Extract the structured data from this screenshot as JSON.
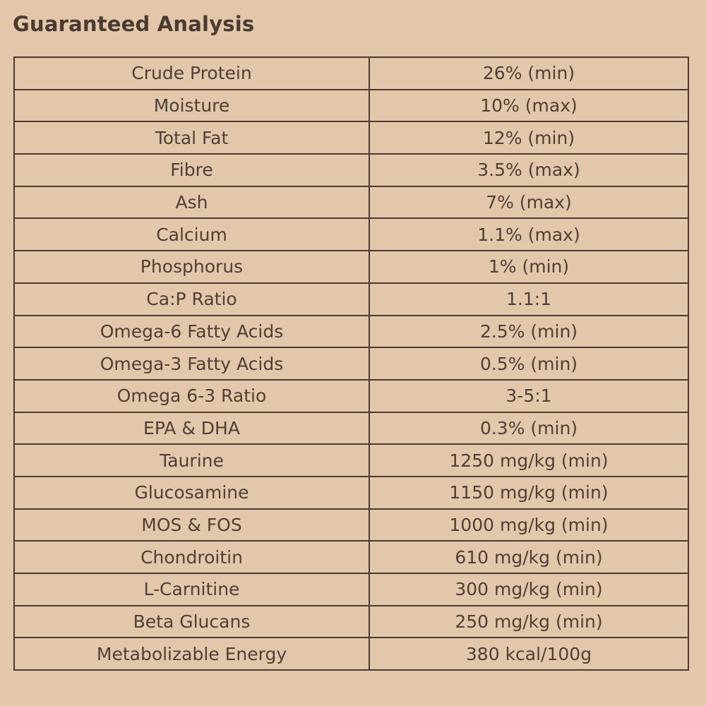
{
  "title": "Guaranteed Analysis",
  "rows": [
    {
      "name": "Crude Protein",
      "value": "26% (min)"
    },
    {
      "name": "Moisture",
      "value": "10% (max)"
    },
    {
      "name": "Total Fat",
      "value": "12% (min)"
    },
    {
      "name": "Fibre",
      "value": "3.5% (max)"
    },
    {
      "name": "Ash",
      "value": "7% (max)"
    },
    {
      "name": "Calcium",
      "value": "1.1% (max)"
    },
    {
      "name": "Phosphorus",
      "value": "1% (min)"
    },
    {
      "name": "Ca:P Ratio",
      "value": "1.1:1"
    },
    {
      "name": "Omega-6 Fatty Acids",
      "value": "2.5% (min)"
    },
    {
      "name": "Omega-3 Fatty Acids",
      "value": "0.5% (min)"
    },
    {
      "name": "Omega 6-3 Ratio",
      "value": "3-5:1"
    },
    {
      "name": "EPA & DHA",
      "value": "0.3% (min)"
    },
    {
      "name": "Taurine",
      "value": "1250 mg/kg (min)"
    },
    {
      "name": "Glucosamine",
      "value": "1150 mg/kg (min)"
    },
    {
      "name": "MOS & FOS",
      "value": "1000 mg/kg (min)"
    },
    {
      "name": "Chondroitin",
      "value": "610 mg/kg (min)"
    },
    {
      "name": "L-Carnitine",
      "value": "300 mg/kg (min)"
    },
    {
      "name": "Beta Glucans",
      "value": "250 mg/kg (min)"
    },
    {
      "name": "Metabolizable Energy",
      "value": "380 kcal/100g"
    }
  ]
}
